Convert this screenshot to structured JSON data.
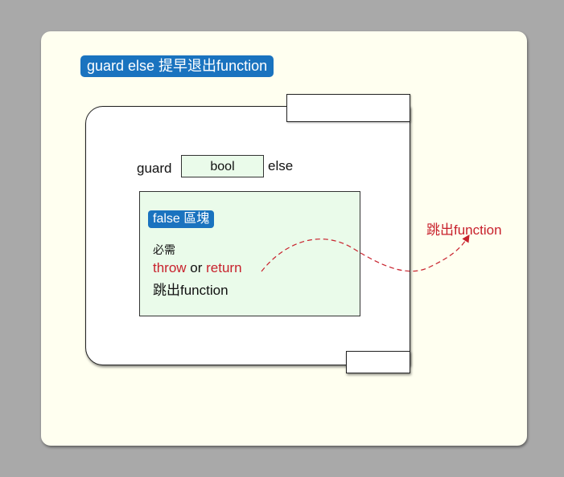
{
  "title": "guard else 提早退出function",
  "guard_keyword": "guard",
  "condition_label": "bool",
  "else_keyword": "else",
  "false_block": {
    "badge": "false 區塊",
    "required_label": "必需",
    "throw_word": "throw",
    "or_word": " or ",
    "return_word": "return",
    "exit_text": "跳出function"
  },
  "exit_label": "跳出function",
  "colors": {
    "background": "#a9a9a9",
    "card": "#fffff0",
    "badge": "#1a73bf",
    "block_fill": "#eafbea",
    "accent_red": "#c8212c"
  }
}
